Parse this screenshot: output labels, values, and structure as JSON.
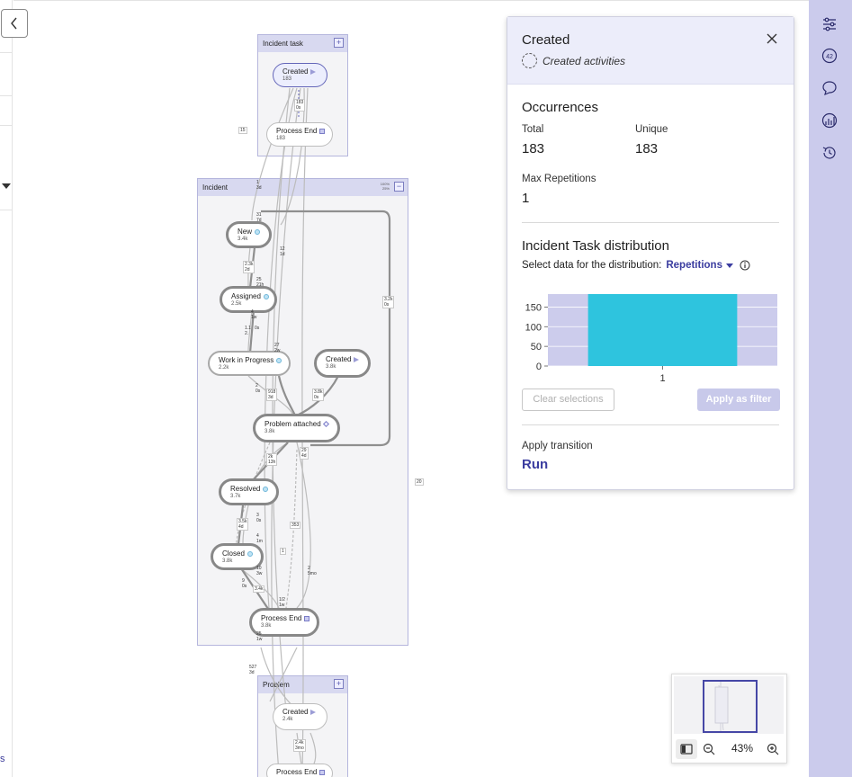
{
  "groups": {
    "incident_task": {
      "title": "Incident task",
      "btn": "+"
    },
    "incident": {
      "title": "Incident",
      "btn": "−",
      "pct1": "100%",
      "pct2": "25%"
    },
    "problem": {
      "title": "Problem",
      "btn": "+"
    }
  },
  "nodes": {
    "it_created": {
      "label": "Created",
      "count": "183"
    },
    "it_end": {
      "label": "Process End",
      "count": "183"
    },
    "new": {
      "label": "New",
      "count": "3.4k"
    },
    "assigned": {
      "label": "Assigned",
      "count": "2.5k"
    },
    "wip": {
      "label": "Work in Progress",
      "count": "2.2k"
    },
    "created2": {
      "label": "Created",
      "count": "3.8k"
    },
    "problem_attached": {
      "label": "Problem attached",
      "count": "3.8k"
    },
    "resolved": {
      "label": "Resolved",
      "count": "3.7k"
    },
    "closed": {
      "label": "Closed",
      "count": "3.8k"
    },
    "inc_end": {
      "label": "Process End",
      "count": "3.8k"
    },
    "p_created": {
      "label": "Created",
      "count": "2.4k"
    },
    "p_end": {
      "label": "Process End",
      "count": ""
    }
  },
  "edge_labels": {
    "e1": "183",
    "e1b": "0s",
    "e2": "15",
    "e3a": "1",
    "e3b": "3d",
    "e4a": "31",
    "e4b": "7d",
    "e5a": "12",
    "e5b": "1d",
    "e6a": "2.3k",
    "e6b": "2d",
    "e7a": "25",
    "e7b": "21h",
    "e8a": "3.2k",
    "e8b": "0s",
    "e9a": "4",
    "e9b": "1w",
    "e10a": "1.1",
    "e10b": "0s",
    "e10c": "2.",
    "e11a": "27",
    "e11b": "2w",
    "e12a": "2",
    "e12b": "0s",
    "e13a": "918",
    "e13b": "3d",
    "e14a": "3.8k",
    "e14b": "0s",
    "e15a": "29",
    "e15b": "4d",
    "e16a": "2k",
    "e16b": "13h",
    "e17": "20",
    "e18a": "3",
    "e18b": "0s",
    "e19a": "3.5k",
    "e19b": "4d",
    "e20": "353",
    "e21a": "4",
    "e21b": "1m",
    "e22": "1",
    "e23a": "10",
    "e23b": "3w",
    "e24a": "9",
    "e24b": "0s",
    "e25": "3.4k",
    "e26a": "2",
    "e26b": "5mo",
    "e27a": "1/2",
    "e27b": "1w",
    "e28a": "25",
    "e28b": "1w",
    "e29a": "527",
    "e29b": "3d",
    "e30a": "2.4k",
    "e30b": "3mo"
  },
  "panel": {
    "title": "Created",
    "subtitle": "Created activities",
    "occurrences": "Occurrences",
    "total_label": "Total",
    "total_value": "183",
    "unique_label": "Unique",
    "unique_value": "183",
    "maxrep_label": "Max Repetitions",
    "maxrep_value": "1",
    "dist_title": "Incident Task distribution",
    "dist_prompt": "Select data for the distribution:",
    "dist_select": "Repetitions",
    "clear_btn": "Clear selections",
    "apply_btn": "Apply as filter",
    "transition_label": "Apply transition",
    "transition_value": "Run"
  },
  "chart_data": {
    "type": "bar",
    "categories": [
      "1"
    ],
    "values": [
      183
    ],
    "yticks": [
      "150",
      "100",
      "50",
      "0"
    ],
    "ylim": [
      0,
      183
    ],
    "bar_color": "#2ec4de",
    "bg_color": "#ccccec"
  },
  "zoom": {
    "level": "43%"
  },
  "left": {
    "letter": "s"
  },
  "rail_icons": [
    "settings-sliders-icon",
    "number-42-icon",
    "comment-icon",
    "analytics-icon",
    "history-icon"
  ]
}
